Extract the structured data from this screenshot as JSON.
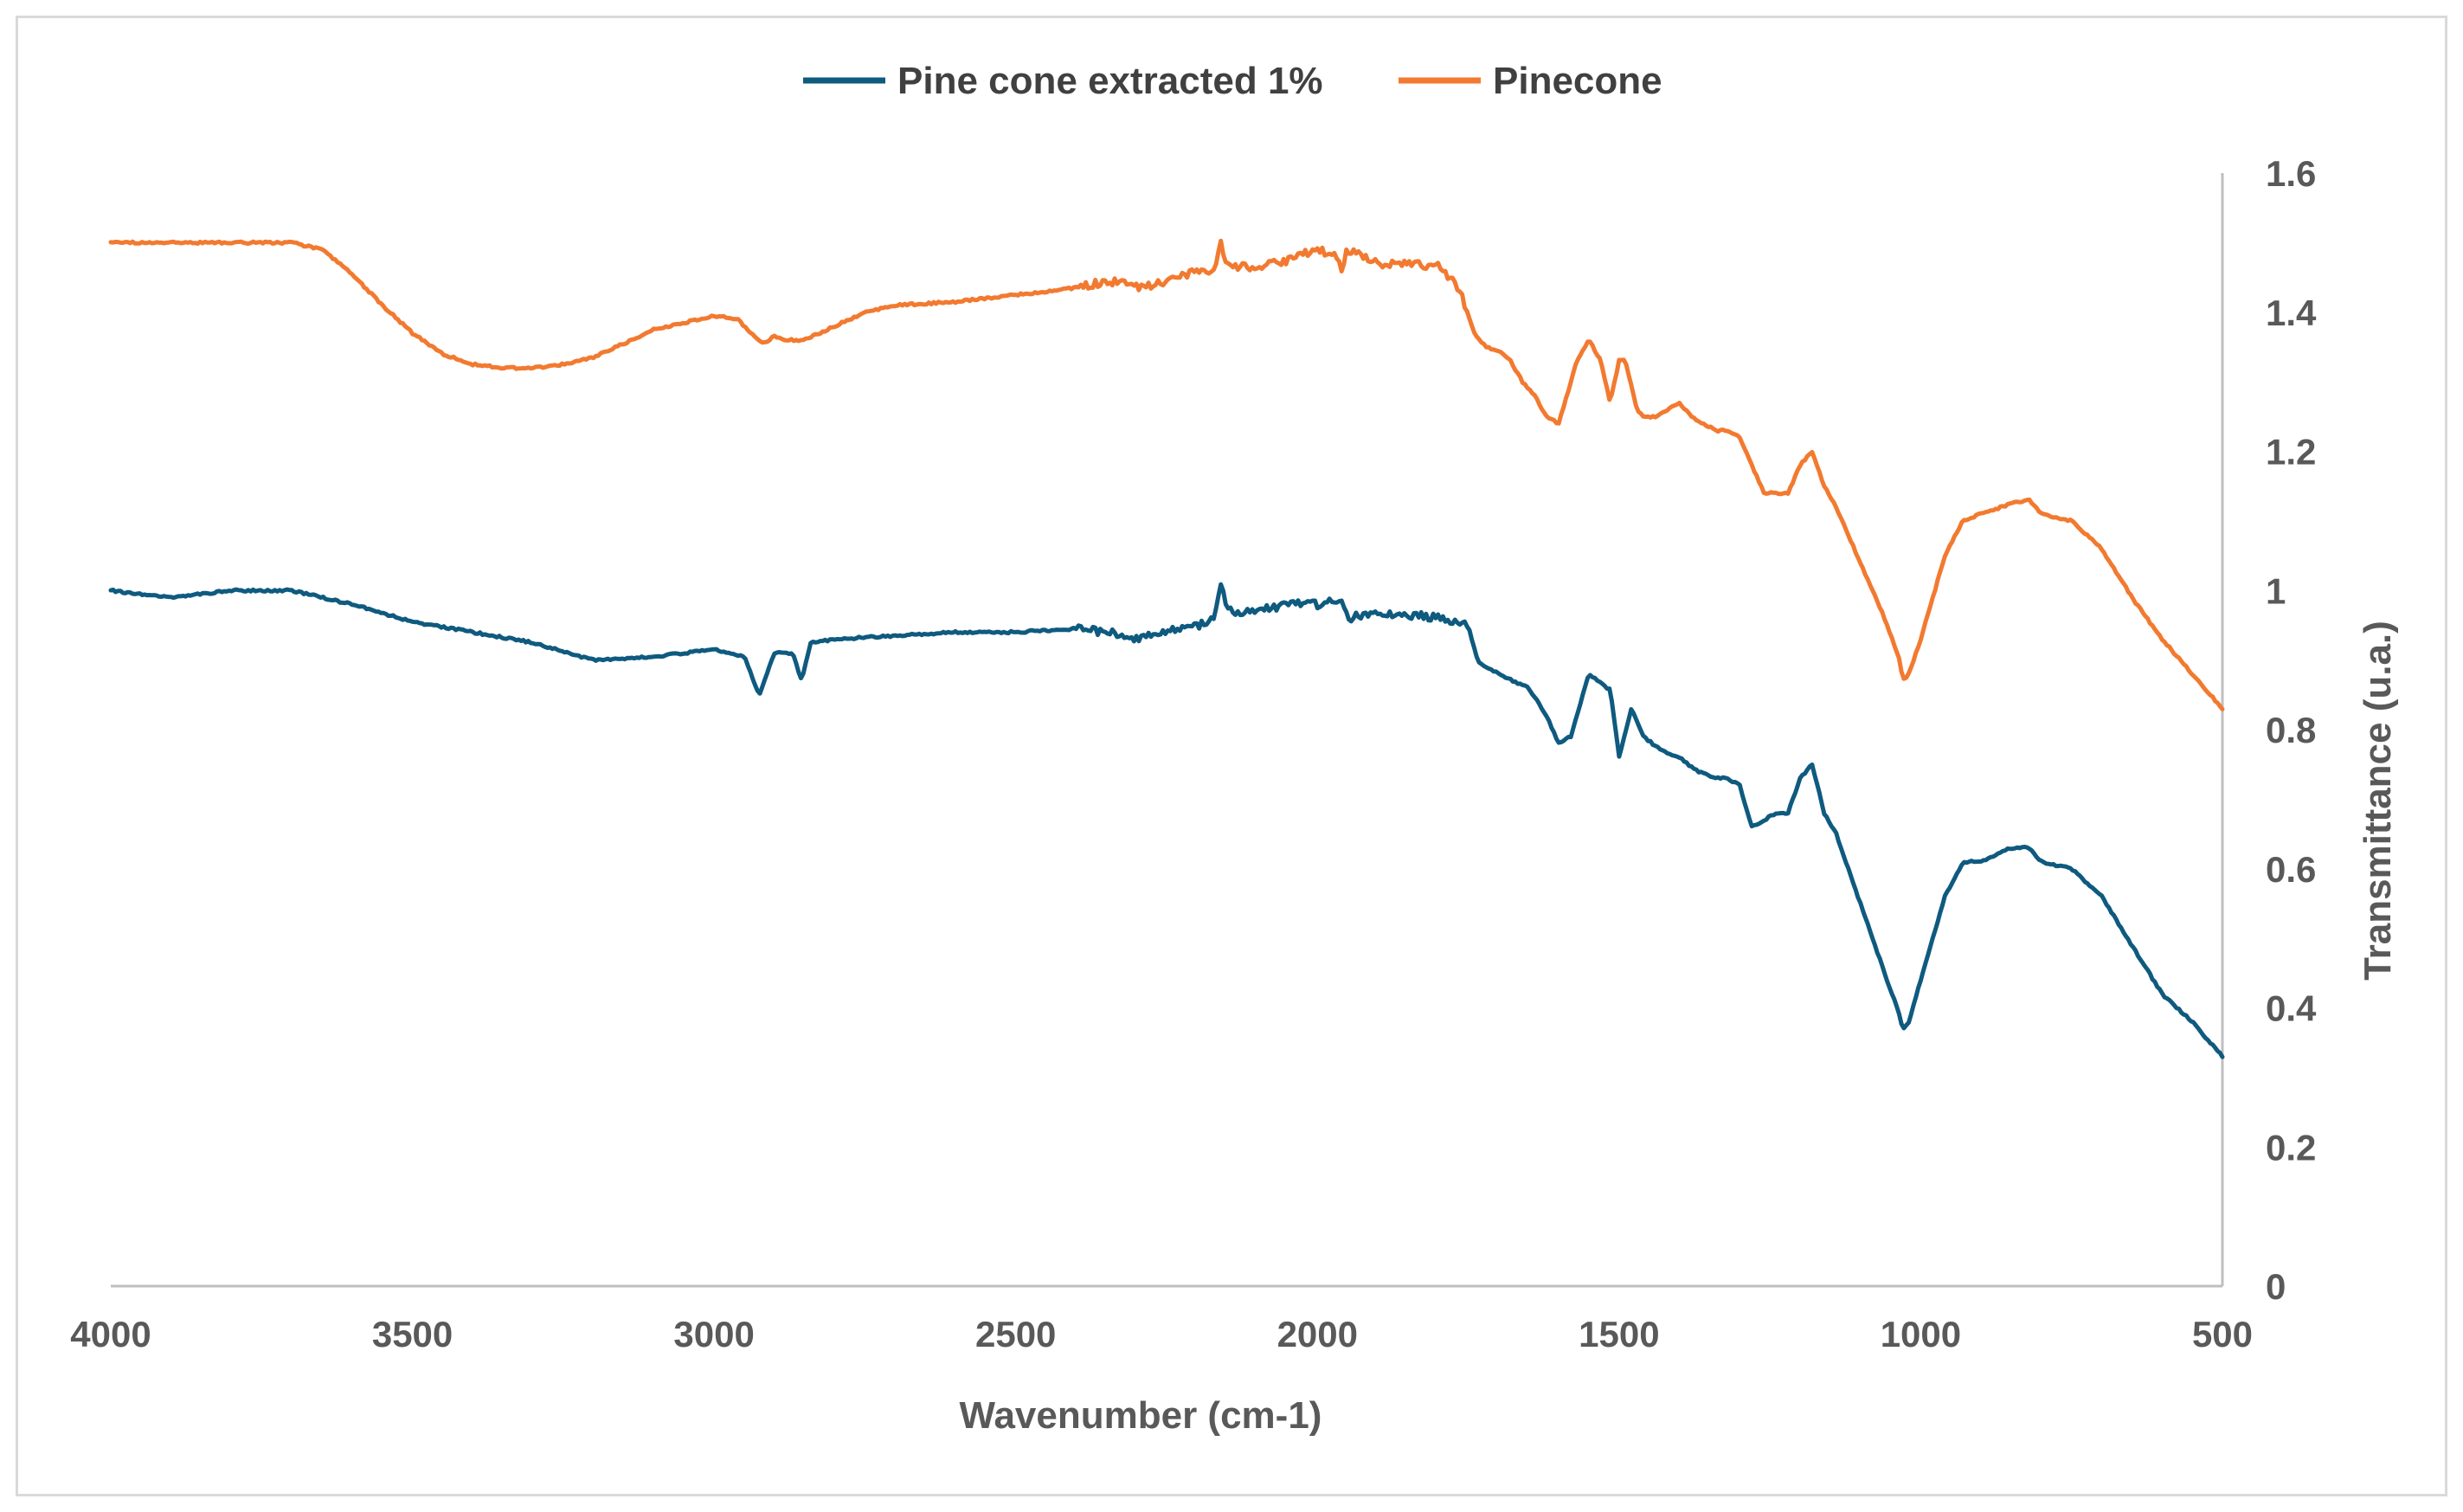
{
  "chart_data": {
    "type": "line",
    "title": "",
    "xlabel": "Wavenumber (cm-1)",
    "ylabel": "Transmittance (u.a.)",
    "xlim": [
      4000,
      500
    ],
    "ylim": [
      0,
      1.6
    ],
    "x_reversed": true,
    "x_ticks": [
      4000,
      3500,
      3000,
      2500,
      2000,
      1500,
      1000,
      500
    ],
    "y_ticks": [
      0,
      0.2,
      0.4,
      0.6,
      0.8,
      1,
      1.2,
      1.4,
      1.6
    ],
    "y_tick_labels": [
      "0",
      "0.2",
      "0.4",
      "0.6",
      "0.8",
      "1",
      "1.2",
      "1.4",
      "1.6"
    ],
    "y_axis_side": "right",
    "grid": false,
    "legend_position": "top-center",
    "series": [
      {
        "name": "Pine cone extracted 1%",
        "color": "#0f5a7f",
        "x": [
          4000,
          3900,
          3800,
          3700,
          3600,
          3500,
          3400,
          3300,
          3200,
          3100,
          3000,
          2950,
          2925,
          2900,
          2870,
          2855,
          2840,
          2800,
          2700,
          2600,
          2500,
          2400,
          2350,
          2300,
          2250,
          2200,
          2170,
          2160,
          2150,
          2100,
          2050,
          2000,
          1960,
          1950,
          1900,
          1850,
          1800,
          1750,
          1735,
          1720,
          1700,
          1650,
          1620,
          1600,
          1580,
          1550,
          1520,
          1515,
          1500,
          1480,
          1460,
          1430,
          1400,
          1370,
          1340,
          1320,
          1300,
          1280,
          1260,
          1240,
          1220,
          1200,
          1180,
          1160,
          1140,
          1100,
          1060,
          1035,
          1030,
          1020,
          1000,
          960,
          930,
          900,
          850,
          820,
          800,
          750,
          700,
          650,
          600,
          550,
          520,
          500
        ],
        "values": [
          1.0,
          0.99,
          1.0,
          1.0,
          0.98,
          0.955,
          0.94,
          0.925,
          0.9,
          0.905,
          0.915,
          0.905,
          0.85,
          0.91,
          0.91,
          0.87,
          0.925,
          0.93,
          0.935,
          0.94,
          0.94,
          0.945,
          0.94,
          0.93,
          0.94,
          0.95,
          0.96,
          1.01,
          0.97,
          0.97,
          0.98,
          0.98,
          0.99,
          0.96,
          0.97,
          0.965,
          0.96,
          0.95,
          0.9,
          0.89,
          0.88,
          0.86,
          0.82,
          0.78,
          0.79,
          0.88,
          0.86,
          0.86,
          0.76,
          0.83,
          0.79,
          0.77,
          0.76,
          0.74,
          0.73,
          0.73,
          0.72,
          0.66,
          0.67,
          0.68,
          0.68,
          0.73,
          0.75,
          0.68,
          0.65,
          0.55,
          0.45,
          0.39,
          0.37,
          0.38,
          0.44,
          0.56,
          0.61,
          0.61,
          0.63,
          0.63,
          0.61,
          0.6,
          0.56,
          0.49,
          0.42,
          0.38,
          0.35,
          0.33
        ]
      },
      {
        "name": "Pinecone",
        "color": "#f27a30",
        "x": [
          4000,
          3900,
          3800,
          3700,
          3650,
          3600,
          3550,
          3500,
          3450,
          3400,
          3350,
          3300,
          3250,
          3200,
          3150,
          3100,
          3050,
          3000,
          2960,
          2940,
          2920,
          2900,
          2880,
          2850,
          2800,
          2750,
          2700,
          2600,
          2500,
          2400,
          2350,
          2320,
          2300,
          2250,
          2200,
          2170,
          2160,
          2150,
          2100,
          2050,
          2000,
          1970,
          1960,
          1950,
          1900,
          1850,
          1800,
          1780,
          1760,
          1740,
          1720,
          1700,
          1680,
          1660,
          1640,
          1620,
          1600,
          1570,
          1550,
          1530,
          1515,
          1500,
          1490,
          1470,
          1460,
          1440,
          1420,
          1400,
          1380,
          1360,
          1340,
          1320,
          1300,
          1280,
          1260,
          1240,
          1220,
          1200,
          1180,
          1160,
          1140,
          1100,
          1060,
          1035,
          1030,
          1020,
          1000,
          960,
          930,
          900,
          850,
          820,
          800,
          750,
          700,
          650,
          600,
          550,
          520,
          500
        ],
        "values": [
          1.5,
          1.5,
          1.5,
          1.5,
          1.49,
          1.455,
          1.41,
          1.37,
          1.34,
          1.325,
          1.32,
          1.32,
          1.325,
          1.335,
          1.355,
          1.375,
          1.385,
          1.395,
          1.39,
          1.37,
          1.355,
          1.365,
          1.36,
          1.36,
          1.38,
          1.4,
          1.41,
          1.415,
          1.425,
          1.435,
          1.445,
          1.44,
          1.435,
          1.445,
          1.46,
          1.46,
          1.5,
          1.465,
          1.465,
          1.475,
          1.49,
          1.48,
          1.46,
          1.49,
          1.47,
          1.47,
          1.465,
          1.45,
          1.42,
          1.37,
          1.35,
          1.345,
          1.33,
          1.3,
          1.28,
          1.25,
          1.24,
          1.33,
          1.36,
          1.33,
          1.27,
          1.33,
          1.33,
          1.26,
          1.25,
          1.25,
          1.26,
          1.27,
          1.25,
          1.24,
          1.23,
          1.23,
          1.22,
          1.18,
          1.14,
          1.14,
          1.14,
          1.18,
          1.2,
          1.15,
          1.12,
          1.04,
          0.96,
          0.9,
          0.87,
          0.88,
          0.93,
          1.05,
          1.1,
          1.11,
          1.125,
          1.13,
          1.11,
          1.1,
          1.06,
          0.99,
          0.93,
          0.88,
          0.85,
          0.83
        ]
      }
    ]
  }
}
